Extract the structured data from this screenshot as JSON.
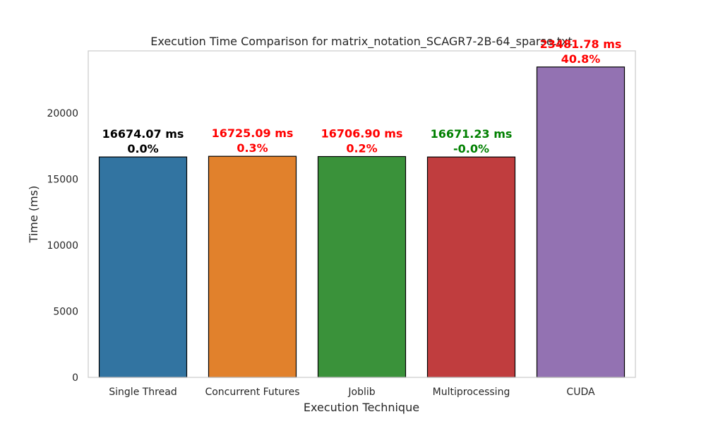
{
  "chart_data": {
    "type": "bar",
    "title": "Execution Time Comparison for matrix_notation_SCAGR7-2B-64_sparse.txt",
    "xlabel": "Execution Technique",
    "ylabel": "Time (ms)",
    "ylim": [
      0,
      24700
    ],
    "yticks": [
      0,
      5000,
      10000,
      15000,
      20000
    ],
    "grid": false,
    "categories": [
      "Single Thread",
      "Concurrent Futures",
      "Joblib",
      "Multiprocessing",
      "CUDA"
    ],
    "values": [
      16674.07,
      16725.09,
      16706.9,
      16671.23,
      23481.78
    ],
    "value_labels": [
      "16674.07 ms",
      "16725.09 ms",
      "16706.90 ms",
      "16671.23 ms",
      "23481.78 ms"
    ],
    "percent_labels": [
      "0.0%",
      "0.3%",
      "0.2%",
      "-0.0%",
      "40.8%"
    ],
    "bar_colors": [
      "#3274a1",
      "#e1812c",
      "#3a923a",
      "#c03d3e",
      "#9372b2"
    ],
    "label_colors": [
      "#000000",
      "#ff0000",
      "#ff0000",
      "#008000",
      "#ff0000"
    ]
  }
}
